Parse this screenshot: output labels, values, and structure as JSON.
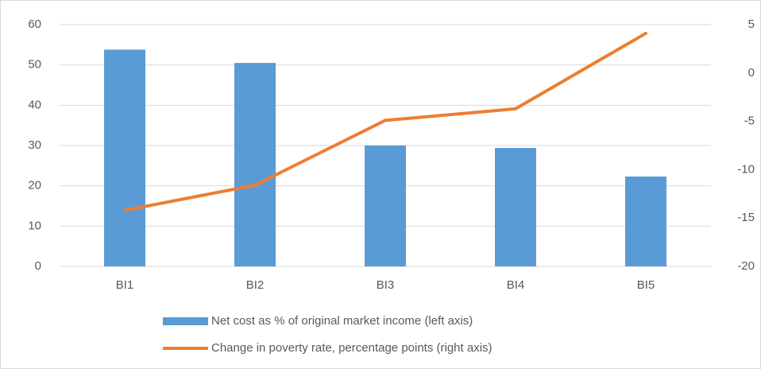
{
  "chart_data": {
    "type": "bar",
    "categories": [
      "BI1",
      "BI2",
      "BI3",
      "BI4",
      "BI5"
    ],
    "series": [
      {
        "name": "Net cost as % of original market income (left axis)",
        "type": "bar",
        "color": "#5b9bd5",
        "values": [
          53.8,
          50.5,
          30,
          29.4,
          22.3
        ]
      },
      {
        "name": "Change in poverty rate, percentage points (right axis)",
        "type": "line",
        "axis": "y2",
        "color": "#ed7d31",
        "values": [
          -14.2,
          -11.6,
          -4.9,
          -3.7,
          4.1
        ]
      }
    ],
    "ylim": [
      0,
      60
    ],
    "yticks": [
      0,
      10,
      20,
      30,
      40,
      50,
      60
    ],
    "y2lim": [
      -20,
      5
    ],
    "y2ticks": [
      -20,
      -15,
      -10,
      -5,
      0,
      5
    ],
    "grid": true,
    "legend": "bottom"
  }
}
